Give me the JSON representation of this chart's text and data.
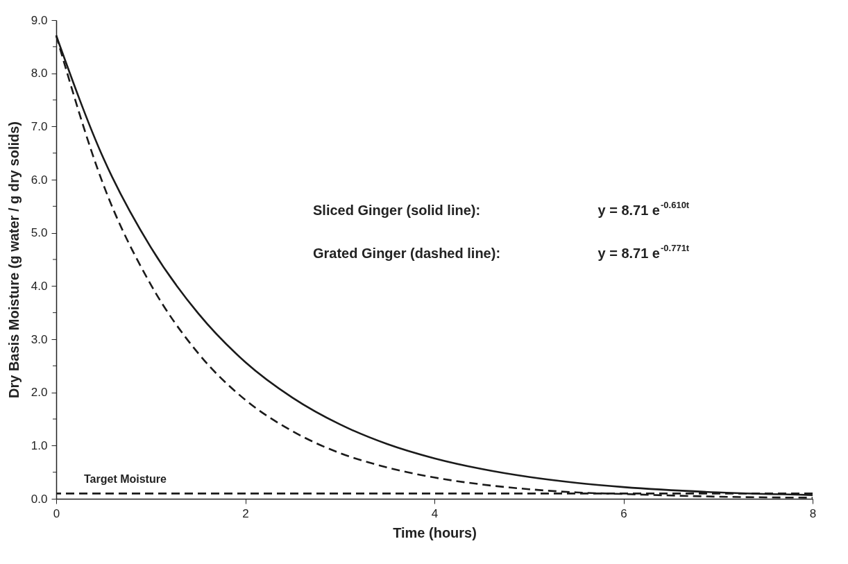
{
  "chart_data": {
    "type": "line",
    "xlabel": "Time   (hours)",
    "ylabel": "Dry Basis Moisture   (g water / g dry solids)",
    "xlim": [
      0,
      8
    ],
    "xticks": [
      0,
      2,
      4,
      6,
      8
    ],
    "ylim": [
      0,
      9
    ],
    "yticks": [
      {
        "value": 0,
        "label": "0.0"
      },
      {
        "value": 0.5,
        "label": null
      },
      {
        "value": 1,
        "label": "1.0"
      },
      {
        "value": 1.5,
        "label": null
      },
      {
        "value": 2,
        "label": "2.0"
      },
      {
        "value": 2.5,
        "label": null
      },
      {
        "value": 3,
        "label": "3.0"
      },
      {
        "value": 3.5,
        "label": null
      },
      {
        "value": 4,
        "label": "4.0"
      },
      {
        "value": 4.5,
        "label": null
      },
      {
        "value": 5,
        "label": "5.0"
      },
      {
        "value": 5.5,
        "label": null
      },
      {
        "value": 6,
        "label": "6.0"
      },
      {
        "value": 6.5,
        "label": null
      },
      {
        "value": 7,
        "label": "7.0"
      },
      {
        "value": 7.5,
        "label": null
      },
      {
        "value": 8,
        "label": "8.0"
      },
      {
        "value": 8.5,
        "label": null
      },
      {
        "value": 9,
        "label": "9.0"
      }
    ],
    "x": [
      0,
      0.5,
      1,
      1.5,
      2,
      2.5,
      3,
      3.5,
      4,
      4.5,
      5,
      5.5,
      6,
      7,
      8
    ],
    "series": [
      {
        "color": "#1a1a1a",
        "line_style": "solid",
        "values": [
          8.71,
          6.4,
          4.73,
          3.49,
          2.57,
          1.9,
          1.4,
          1.03,
          0.76,
          0.56,
          0.41,
          0.3,
          0.22,
          0.12,
          0.07
        ]
      },
      {
        "color": "#1a1a1a",
        "line_style": "dashed",
        "values": [
          8.71,
          5.9,
          4.03,
          2.74,
          1.86,
          1.27,
          0.86,
          0.59,
          0.4,
          0.27,
          0.18,
          0.12,
          0.09,
          0.04,
          0.02
        ]
      }
    ],
    "ref_lines": [
      {
        "axis": "y",
        "value": 0.1,
        "label": "Target Moisture",
        "line_style": "dashed",
        "color": "#1a1a1a"
      }
    ],
    "annotations": [
      "Sliced Ginger (solid line):",
      "y = 8.71 e$^{-0.610t}$",
      "Grated Ginger (dashed line):",
      "y = 8.71 e$^{-0.771t}$"
    ],
    "grid": false,
    "marker": "none"
  }
}
